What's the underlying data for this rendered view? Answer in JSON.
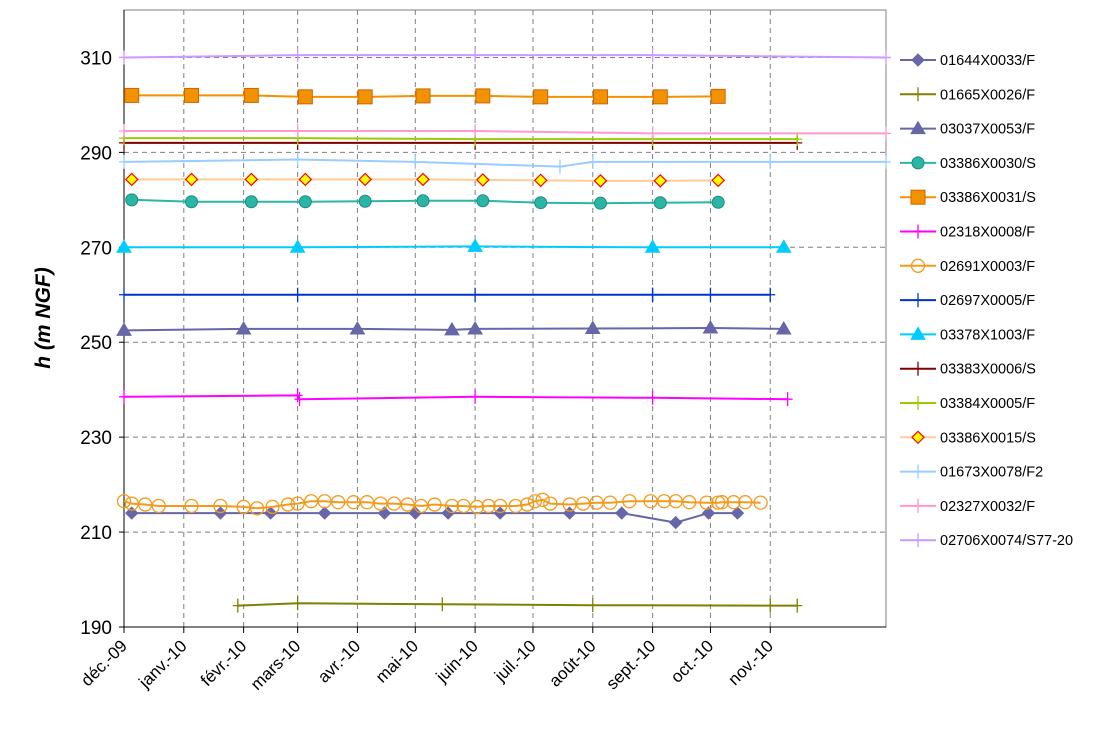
{
  "chart_data": {
    "type": "line",
    "title": "",
    "xlabel": "",
    "ylabel": "h (m NGF)",
    "ylim": [
      190,
      320
    ],
    "yticks": [
      190,
      210,
      230,
      250,
      270,
      290,
      310
    ],
    "xlim": [
      "2009-12-01",
      "2010-12-31"
    ],
    "xticks": [
      {
        "date": "2009-12-01",
        "label": "déc.-09"
      },
      {
        "date": "2010-01-01",
        "label": "janv.-10"
      },
      {
        "date": "2010-02-01",
        "label": "févr.-10"
      },
      {
        "date": "2010-03-01",
        "label": "mars-10"
      },
      {
        "date": "2010-04-01",
        "label": "avr.-10"
      },
      {
        "date": "2010-05-01",
        "label": "mai-10"
      },
      {
        "date": "2010-06-01",
        "label": "juin-10"
      },
      {
        "date": "2010-07-01",
        "label": "juil.-10"
      },
      {
        "date": "2010-08-01",
        "label": "août-10"
      },
      {
        "date": "2010-09-01",
        "label": "sept.-10"
      },
      {
        "date": "2010-10-01",
        "label": "oct.-10"
      },
      {
        "date": "2010-11-01",
        "label": "nov.-10"
      }
    ],
    "grid": true,
    "legend_position": "right",
    "series": [
      {
        "name": "01644X0033/F",
        "color": "#6666a8",
        "marker": "diamond",
        "x": [
          "2009-12-05",
          "2010-01-20",
          "2010-02-15",
          "2010-03-15",
          "2010-04-15",
          "2010-05-01",
          "2010-05-18",
          "2010-06-14",
          "2010-07-20",
          "2010-08-16",
          "2010-09-13",
          "2010-09-30",
          "2010-10-15"
        ],
        "y": [
          214,
          214,
          214,
          214,
          214,
          214,
          214,
          214,
          214,
          214,
          212,
          214,
          214
        ]
      },
      {
        "name": "01665X0026/F",
        "color": "#808000",
        "marker": "plus",
        "x": [
          "2010-01-29",
          "2010-03-01",
          "2010-05-15",
          "2010-08-01",
          "2010-11-01",
          "2010-11-15"
        ],
        "y": [
          194.5,
          195,
          194.8,
          194.6,
          194.5,
          194.5
        ]
      },
      {
        "name": "03037X0053/F",
        "color": "#6666a8",
        "marker": "triangle",
        "x": [
          "2009-12-01",
          "2010-02-01",
          "2010-04-01",
          "2010-05-20",
          "2010-06-01",
          "2010-08-01",
          "2010-10-01",
          "2010-11-08"
        ],
        "y": [
          252.5,
          252.8,
          252.8,
          252.6,
          252.8,
          252.9,
          253,
          252.8
        ]
      },
      {
        "name": "03386X0030/S",
        "color": "#2bb5a5",
        "marker": "circle",
        "x": [
          "2009-12-05",
          "2010-01-05",
          "2010-02-05",
          "2010-03-05",
          "2010-04-05",
          "2010-05-05",
          "2010-06-05",
          "2010-07-05",
          "2010-08-05",
          "2010-09-05",
          "2010-10-05"
        ],
        "y": [
          280,
          279.6,
          279.6,
          279.6,
          279.7,
          279.8,
          279.8,
          279.4,
          279.3,
          279.4,
          279.5
        ]
      },
      {
        "name": "03386X0031/S",
        "color": "#f39200",
        "marker": "square",
        "x": [
          "2009-12-05",
          "2010-01-05",
          "2010-02-05",
          "2010-03-05",
          "2010-04-05",
          "2010-05-05",
          "2010-06-05",
          "2010-07-05",
          "2010-08-05",
          "2010-09-05",
          "2010-10-05"
        ],
        "y": [
          302,
          302,
          302,
          301.7,
          301.7,
          301.9,
          301.9,
          301.7,
          301.7,
          301.7,
          301.8
        ]
      },
      {
        "name": "02318X0008/F",
        "color": "#ff00ff",
        "marker": "plus",
        "x": [
          "2009-12-01",
          "2010-03-01",
          "2010-03-02",
          "2010-06-01",
          "2010-09-01",
          "2010-11-10"
        ],
        "y": [
          238.5,
          238.8,
          238,
          238.5,
          238.3,
          238
        ]
      },
      {
        "name": "02691X0003/F",
        "color": "#f39a1c",
        "marker": "open-circle",
        "x": [
          "2009-12-01",
          "2009-12-05",
          "2009-12-12",
          "2009-12-19",
          "2010-01-05",
          "2010-01-20",
          "2010-02-01",
          "2010-02-08",
          "2010-02-16",
          "2010-02-24",
          "2010-03-01",
          "2010-03-08",
          "2010-03-15",
          "2010-03-22",
          "2010-03-30",
          "2010-04-06",
          "2010-04-13",
          "2010-04-20",
          "2010-04-27",
          "2010-05-04",
          "2010-05-11",
          "2010-05-20",
          "2010-05-26",
          "2010-06-02",
          "2010-06-08",
          "2010-06-14",
          "2010-06-22",
          "2010-06-28",
          "2010-07-02",
          "2010-07-06",
          "2010-07-10",
          "2010-07-20",
          "2010-07-27",
          "2010-08-03",
          "2010-08-10",
          "2010-08-20",
          "2010-08-31",
          "2010-09-07",
          "2010-09-13",
          "2010-09-20",
          "2010-09-29",
          "2010-10-05",
          "2010-10-07",
          "2010-10-13",
          "2010-10-19",
          "2010-10-27"
        ],
        "y": [
          216.5,
          216,
          215.8,
          215.5,
          215.5,
          215.5,
          215.3,
          215,
          215.3,
          215.8,
          216,
          216.5,
          216.5,
          216.3,
          216.3,
          216.3,
          216,
          216,
          215.8,
          215.5,
          215.8,
          215.5,
          215.5,
          215.3,
          215.5,
          215.5,
          215.5,
          215.8,
          216.5,
          216.8,
          216,
          215.8,
          216,
          216.2,
          216.2,
          216.5,
          216.5,
          216.5,
          216.5,
          216.3,
          216.2,
          216.2,
          216.3,
          216.3,
          216.3,
          216.2
        ]
      },
      {
        "name": "02697X0005/F",
        "color": "#0033cc",
        "marker": "plus",
        "x": [
          "2009-12-01",
          "2010-03-01",
          "2010-06-01",
          "2010-09-01",
          "2010-09-01",
          "2010-10-01",
          "2010-11-01"
        ],
        "y": [
          260,
          260,
          260,
          260,
          260,
          260,
          260
        ]
      },
      {
        "name": "03378X1003/F",
        "color": "#00ccff",
        "marker": "triangle",
        "x": [
          "2009-12-01",
          "2010-03-01",
          "2010-06-01",
          "2010-09-01",
          "2010-11-08"
        ],
        "y": [
          270,
          270,
          270.2,
          270,
          270
        ]
      },
      {
        "name": "03383X0006/S",
        "color": "#800000",
        "marker": "plus",
        "x": [
          "2009-12-01",
          "2010-03-01",
          "2010-06-01",
          "2010-09-01",
          "2010-11-15"
        ],
        "y": [
          292,
          292,
          292,
          292,
          292
        ]
      },
      {
        "name": "03384X0005/F",
        "color": "#99cc00",
        "marker": "plus",
        "x": [
          "2009-12-01",
          "2010-03-01",
          "2010-06-01",
          "2010-09-01",
          "2010-11-15"
        ],
        "y": [
          293,
          293,
          292.8,
          292.8,
          292.8
        ]
      },
      {
        "name": "03386X0015/S",
        "color": "#ffcc99",
        "marker": "diamond-yellow",
        "x": [
          "2009-12-05",
          "2010-01-05",
          "2010-02-05",
          "2010-03-05",
          "2010-04-05",
          "2010-05-05",
          "2010-06-05",
          "2010-07-05",
          "2010-08-05",
          "2010-09-05",
          "2010-10-05"
        ],
        "y": [
          284.3,
          284.3,
          284.3,
          284.3,
          284.3,
          284.3,
          284.2,
          284.1,
          284,
          284,
          284.1
        ]
      },
      {
        "name": "01673X0078/F2",
        "color": "#99ccff",
        "marker": "plus",
        "x": [
          "2009-12-01",
          "2010-03-01",
          "2010-05-01",
          "2010-07-15",
          "2010-08-01",
          "2010-11-01",
          "2010-12-31"
        ],
        "y": [
          288,
          288.5,
          288,
          287,
          288,
          288,
          288
        ]
      },
      {
        "name": "02327X0032/F",
        "color": "#ff99cc",
        "marker": "plus",
        "x": [
          "2009-12-01",
          "2010-03-01",
          "2010-06-01",
          "2010-09-01",
          "2010-12-31"
        ],
        "y": [
          294.5,
          294.5,
          294.5,
          294,
          294
        ]
      },
      {
        "name": "02706X0074/S77-20",
        "color": "#cc99ff",
        "marker": "plus",
        "x": [
          "2009-12-01",
          "2010-03-01",
          "2010-06-01",
          "2010-09-01",
          "2010-12-31"
        ],
        "y": [
          310,
          310.5,
          310.5,
          310.5,
          310
        ]
      }
    ]
  }
}
